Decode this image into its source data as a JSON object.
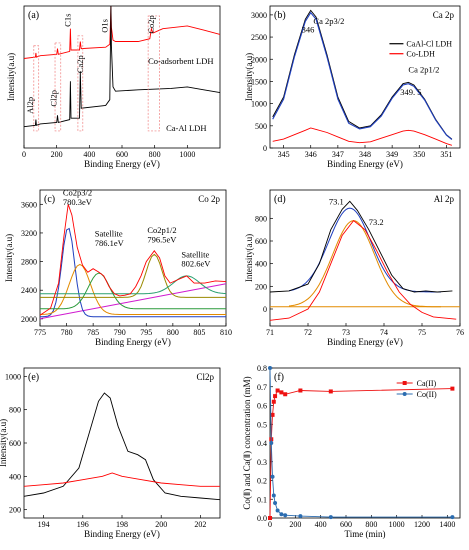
{
  "chart_data": [
    {
      "id": "a",
      "type": "line",
      "panel_label": "(a)",
      "xlabel": "Binding Energy (eV)",
      "ylabel": "Intensity(a.u)",
      "xlim": [
        0,
        1200
      ],
      "xticks": [
        0,
        200,
        400,
        600,
        800,
        1000
      ],
      "ylim": [
        0,
        10
      ],
      "series": [
        {
          "name": "Co-adsorbent LDH",
          "color": "#ff0000",
          "x": [
            0,
            70,
            73,
            76,
            100,
            200,
            205,
            210,
            280,
            284,
            288,
            340,
            345,
            350,
            500,
            525,
            530,
            532,
            535,
            545,
            560,
            700,
            770,
            780,
            790,
            810,
            850,
            1000,
            1100,
            1200
          ],
          "y": [
            6.3,
            6.4,
            6.7,
            6.4,
            6.5,
            6.6,
            7.0,
            6.6,
            6.8,
            8.4,
            6.9,
            6.9,
            7.5,
            7.0,
            7.1,
            7.3,
            9.2,
            10.0,
            8.5,
            7.6,
            7.5,
            7.5,
            7.7,
            8.4,
            8.1,
            8.2,
            8.4,
            8.6,
            8.3,
            8.0
          ]
        },
        {
          "name": "Ca-Al LDH",
          "color": "#000000",
          "x": [
            0,
            70,
            73,
            76,
            100,
            200,
            205,
            210,
            280,
            284,
            288,
            340,
            345,
            350,
            500,
            525,
            530,
            532,
            535,
            545,
            560,
            700,
            900,
            1000,
            1100,
            1200
          ],
          "y": [
            1.5,
            1.6,
            2.0,
            1.6,
            1.7,
            1.8,
            2.3,
            1.8,
            2.0,
            4.7,
            2.1,
            2.1,
            5.4,
            2.8,
            3.0,
            3.4,
            8.2,
            10.0,
            7.2,
            4.3,
            4.0,
            4.1,
            4.2,
            4.3,
            4.1,
            3.9
          ]
        }
      ],
      "annotations": [
        "O1s",
        "Co2p",
        "C1s",
        "Ca2p",
        "Cl2p",
        "Al2p",
        "Co-adsorbent LDH",
        "Ca-Al LDH"
      ]
    },
    {
      "id": "b",
      "type": "line",
      "panel_label": "(b)",
      "title": "Ca 2p",
      "xlabel": "Binding Energy (eV)",
      "ylabel": "Intensity(a.u)",
      "xlim": [
        344.5,
        351.5
      ],
      "xticks": [
        345,
        346,
        347,
        348,
        349,
        350,
        351
      ],
      "ylim": [
        0,
        3200
      ],
      "yticks": [
        0,
        500,
        1000,
        1500,
        2000,
        2500,
        3000
      ],
      "legend": [
        "CaAl-Cl LDH",
        "Co-LDH"
      ],
      "series": [
        {
          "name": "CaAl-Cl LDH",
          "color": "#000000",
          "x": [
            344.6,
            345.0,
            345.4,
            345.8,
            346.0,
            346.2,
            346.6,
            347.0,
            347.4,
            347.8,
            348.2,
            348.6,
            349.0,
            349.4,
            349.6,
            349.8,
            350.2,
            350.6,
            351.0,
            351.2
          ],
          "y": [
            700,
            1150,
            2100,
            2900,
            3100,
            2950,
            2100,
            1150,
            600,
            450,
            500,
            750,
            1150,
            1450,
            1480,
            1420,
            1100,
            650,
            300,
            200
          ]
        },
        {
          "name": "Co-LDH",
          "color": "#ff0000",
          "x": [
            344.6,
            345.0,
            345.4,
            345.8,
            346.0,
            346.2,
            346.6,
            347.0,
            347.4,
            347.8,
            348.2,
            348.6,
            349.0,
            349.4,
            349.6,
            349.8,
            350.2,
            350.6,
            351.0,
            351.2
          ],
          "y": [
            150,
            200,
            300,
            400,
            450,
            420,
            350,
            250,
            150,
            120,
            140,
            220,
            300,
            380,
            400,
            380,
            300,
            200,
            100,
            60
          ]
        }
      ],
      "annotations": [
        "Ca 2p3/2",
        "346",
        "Ca 2p1/2",
        "349. 5"
      ]
    },
    {
      "id": "c",
      "type": "line",
      "panel_label": "(c)",
      "title": "Co 2p",
      "xlabel": "Binding Energy (eV)",
      "ylabel": "Intensity(a.u)",
      "xlim": [
        775,
        810
      ],
      "xticks": [
        775,
        780,
        785,
        790,
        795,
        800,
        805,
        810
      ],
      "ylim": [
        1900,
        3800
      ],
      "yticks": [
        2000,
        2400,
        2800,
        3200,
        3600
      ],
      "series": [
        {
          "name": "raw",
          "color": "#ff0000",
          "x": [
            775,
            777,
            778.5,
            779.5,
            780.3,
            781,
            782,
            783,
            784,
            785,
            786.1,
            787,
            788,
            789,
            790,
            791,
            792,
            793,
            794,
            795,
            796.5,
            797.5,
            798.5,
            799.5,
            801,
            802.6,
            804,
            806,
            808,
            810
          ],
          "y": [
            2050,
            2150,
            2500,
            3150,
            3600,
            3450,
            3000,
            2750,
            2650,
            2700,
            2650,
            2600,
            2450,
            2350,
            2320,
            2330,
            2350,
            2450,
            2600,
            2800,
            2950,
            2850,
            2600,
            2500,
            2550,
            2600,
            2500,
            2500,
            2530,
            2520
          ]
        }
      ],
      "annotations": [
        "Co2p3/2",
        "780.3eV",
        "Satellite",
        "786.1eV",
        "Co2p1/2",
        "796.5eV",
        "Satellite",
        "802.6eV"
      ]
    },
    {
      "id": "d",
      "type": "line",
      "panel_label": "(d)",
      "title": "Al 2p",
      "xlabel": "Binding Energy (eV)",
      "ylabel": "Intensity(a.u)",
      "xlim": [
        71,
        76
      ],
      "xticks": [
        71,
        72,
        73,
        74,
        75,
        76
      ],
      "ylim": [
        -150,
        1050
      ],
      "yticks": [
        0,
        200,
        400,
        600,
        800
      ],
      "series": [
        {
          "name": "black",
          "color": "#000000",
          "x": [
            71.0,
            71.5,
            72.0,
            72.3,
            72.6,
            72.9,
            73.1,
            73.3,
            73.6,
            73.9,
            74.2,
            74.5,
            74.8,
            75.1,
            75.4,
            75.8
          ],
          "y": [
            150,
            160,
            220,
            400,
            700,
            880,
            950,
            870,
            700,
            500,
            300,
            180,
            150,
            160,
            150,
            160
          ]
        },
        {
          "name": "red",
          "color": "#ff0000",
          "x": [
            71.0,
            71.5,
            72.0,
            72.3,
            72.6,
            72.9,
            73.2,
            73.5,
            73.8,
            74.1,
            74.4,
            74.7,
            75.0,
            75.3,
            75.6,
            75.9
          ],
          "y": [
            -100,
            -80,
            0,
            150,
            400,
            650,
            780,
            700,
            520,
            320,
            150,
            40,
            -30,
            -70,
            -80,
            -90
          ]
        }
      ],
      "annotations": [
        "73.1",
        "73.2"
      ]
    },
    {
      "id": "e",
      "type": "line",
      "panel_label": "(e)",
      "title": "Cl2p",
      "xlabel": "Binding Energy (eV)",
      "ylabel": "Intensity(a.u)",
      "xlim": [
        193,
        203
      ],
      "xticks": [
        194,
        196,
        198,
        200,
        202
      ],
      "ylim": [
        150,
        1050
      ],
      "yticks": [
        200,
        400,
        600,
        800,
        1000
      ],
      "series": [
        {
          "name": "black",
          "color": "#000000",
          "x": [
            193.0,
            194.0,
            195.0,
            195.8,
            196.3,
            196.8,
            197.1,
            197.4,
            197.8,
            198.3,
            198.8,
            199.2,
            199.6,
            200.2,
            201.0,
            202.0,
            203.0
          ],
          "y": [
            280,
            300,
            340,
            450,
            650,
            850,
            900,
            870,
            700,
            550,
            530,
            500,
            380,
            300,
            280,
            270,
            260
          ]
        },
        {
          "name": "red",
          "color": "#ff0000",
          "x": [
            193.0,
            194.0,
            195.0,
            196.0,
            197.0,
            197.5,
            198.0,
            199.0,
            200.0,
            201.0,
            202.0,
            203.0
          ],
          "y": [
            340,
            350,
            360,
            380,
            400,
            420,
            400,
            380,
            360,
            350,
            340,
            340
          ]
        }
      ]
    },
    {
      "id": "f",
      "type": "line",
      "panel_label": "(f)",
      "xlabel": "Time (min)",
      "ylabel": "Co(Ⅱ) and Ca(Ⅱ) concentration (mM)",
      "xlim": [
        0,
        1500
      ],
      "xticks": [
        0,
        200,
        400,
        600,
        800,
        1000,
        1200,
        1400
      ],
      "ylim": [
        0,
        0.8
      ],
      "yticks": [
        0.0,
        0.1,
        0.2,
        0.3,
        0.4,
        0.5,
        0.6,
        0.7,
        0.8
      ],
      "legend": [
        "Ca(II)",
        "Co(II)"
      ],
      "series": [
        {
          "name": "Ca(II)",
          "color": "#ee1111",
          "marker": "square",
          "x": [
            0,
            10,
            20,
            30,
            40,
            60,
            90,
            120,
            240,
            480,
            1440
          ],
          "y": [
            0,
            0.42,
            0.55,
            0.62,
            0.65,
            0.68,
            0.67,
            0.66,
            0.68,
            0.675,
            0.69
          ]
        },
        {
          "name": "Co(II)",
          "color": "#2b6cb0",
          "marker": "circle",
          "x": [
            0,
            10,
            20,
            30,
            40,
            60,
            90,
            120,
            240,
            480,
            1440
          ],
          "y": [
            0.8,
            0.4,
            0.22,
            0.12,
            0.08,
            0.04,
            0.02,
            0.015,
            0.01,
            0.005,
            0.005
          ]
        }
      ]
    }
  ]
}
